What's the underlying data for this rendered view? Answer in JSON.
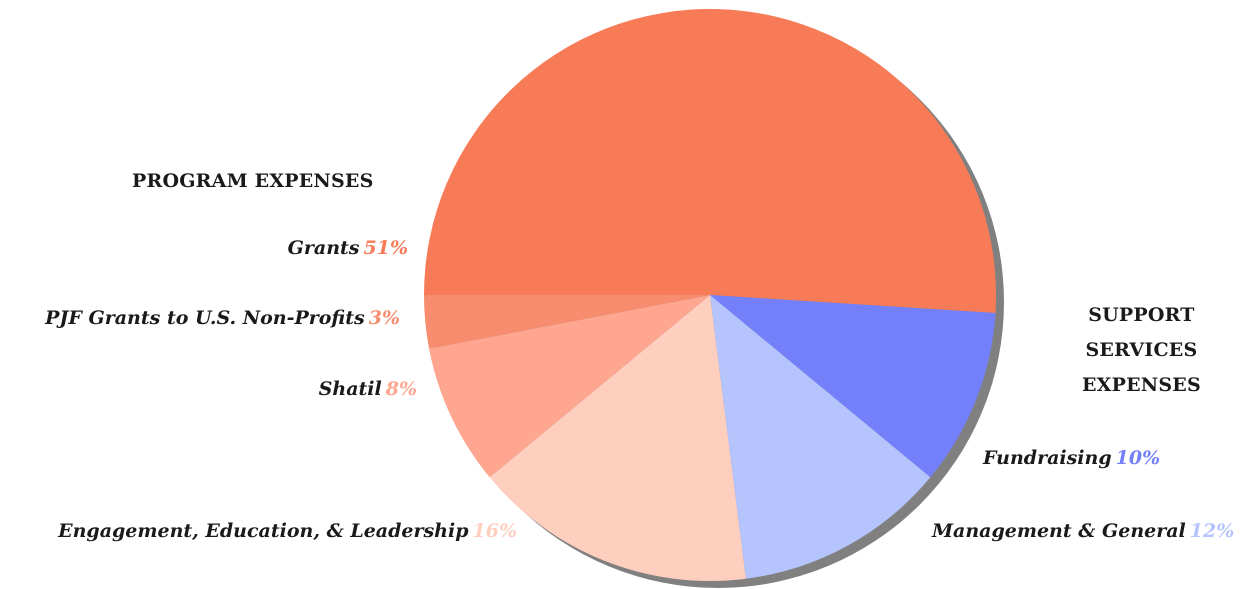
{
  "chart_data": {
    "type": "pie",
    "start": "9 o'clock (left), proceeding clockwise",
    "slices": [
      {
        "label": "Grants",
        "value": 51,
        "percent_text": "51%",
        "color": "#f87b58",
        "group": "program"
      },
      {
        "label": "Fundraising",
        "value": 10,
        "percent_text": "10%",
        "color": "#7380f9",
        "group": "support"
      },
      {
        "label": "Management & General",
        "value": 12,
        "percent_text": "12%",
        "color": "#b5c4fd",
        "group": "support"
      },
      {
        "label": "Engagement, Education, & Leadership",
        "value": 16,
        "percent_text": "16%",
        "color": "#fecebf",
        "group": "program"
      },
      {
        "label": "Shatil",
        "value": 8,
        "percent_text": "8%",
        "color": "#fea690",
        "group": "program"
      },
      {
        "label": "PJF Grants to U.S. Non-Profits",
        "value": 3,
        "percent_text": "3%",
        "color": "#f88c6e",
        "group": "program"
      }
    ],
    "shadow_color": "#808080",
    "groups": {
      "program": "PROGRAM EXPENSES",
      "support": "SUPPORT SERVICES EXPENSES"
    }
  },
  "headings": {
    "program": "PROGRAM EXPENSES",
    "support_line1": "SUPPORT",
    "support_line2": "SERVICES",
    "support_line3": "EXPENSES"
  }
}
